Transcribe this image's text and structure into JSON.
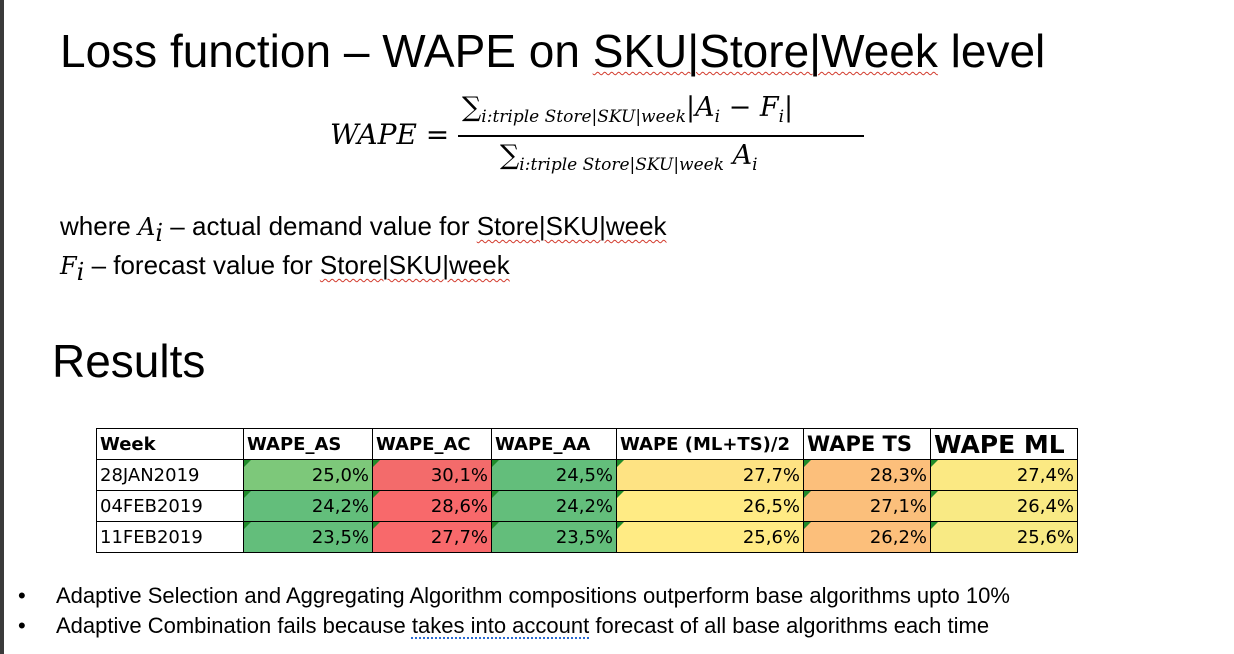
{
  "slide": {
    "title_pre": "Loss function – WAPE on ",
    "title_link": "SKU|Store|Week",
    "title_post": " level",
    "formula": {
      "lhs": "WAPE =",
      "num_sum": "∑",
      "num_sub": "i:triple Store|SKU|week",
      "num_body": "|A",
      "num_i1": "i",
      "num_mid": " − F",
      "num_i2": "i",
      "num_end": "|",
      "den_sum": "∑",
      "den_sub": "i:triple Store|SKU|week",
      "den_body": " A",
      "den_i": "i"
    },
    "definitions": [
      {
        "prefix": "where ",
        "symbol": "A",
        "sub": "i",
        "dash": " – actual demand value for ",
        "link": "Store|SKU|week"
      },
      {
        "prefix": "",
        "symbol": "F",
        "sub": "i",
        "dash": " – forecast value for ",
        "link": "Store|SKU|week"
      }
    ],
    "results_title": "Results",
    "table": {
      "columns": [
        "Week",
        "WAPE_AS",
        "WAPE_AC",
        "WAPE_AA",
        "WAPE (ML+TS)/2",
        "WAPE TS",
        "WAPE ML"
      ],
      "rows": [
        [
          "28JAN2019",
          "25,0%",
          "30,1%",
          "24,5%",
          "27,7%",
          "28,3%",
          "27,4%"
        ],
        [
          "04FEB2019",
          "24,2%",
          "28,6%",
          "24,2%",
          "26,5%",
          "27,1%",
          "26,4%"
        ],
        [
          "11FEB2019",
          "23,5%",
          "27,7%",
          "23,5%",
          "25,6%",
          "26,2%",
          "25,6%"
        ]
      ],
      "cell_colors": [
        [
          null,
          "#7dc87a",
          "#f36b6b",
          "#63be7b",
          "#fee383",
          "#fcbf7b",
          "#fbe983"
        ],
        [
          null,
          "#63be7b",
          "#f8696b",
          "#63be7b",
          "#ffeb84",
          "#fbbf7b",
          "#f9ea84"
        ],
        [
          null,
          "#63be7b",
          "#f8696b",
          "#63be7b",
          "#ffeb84",
          "#fcbf7b",
          "#f8ea84"
        ]
      ]
    },
    "bullets": [
      {
        "dot": "•",
        "pre": "Adaptive Selection and Aggregating Algorithm compositions outperform base algorithms upto 10%",
        "link": "",
        "post": ""
      },
      {
        "dot": "•",
        "pre": "Adaptive Combination fails because ",
        "link": "takes into account",
        "post": " forecast of all base algorithms each time"
      }
    ]
  }
}
